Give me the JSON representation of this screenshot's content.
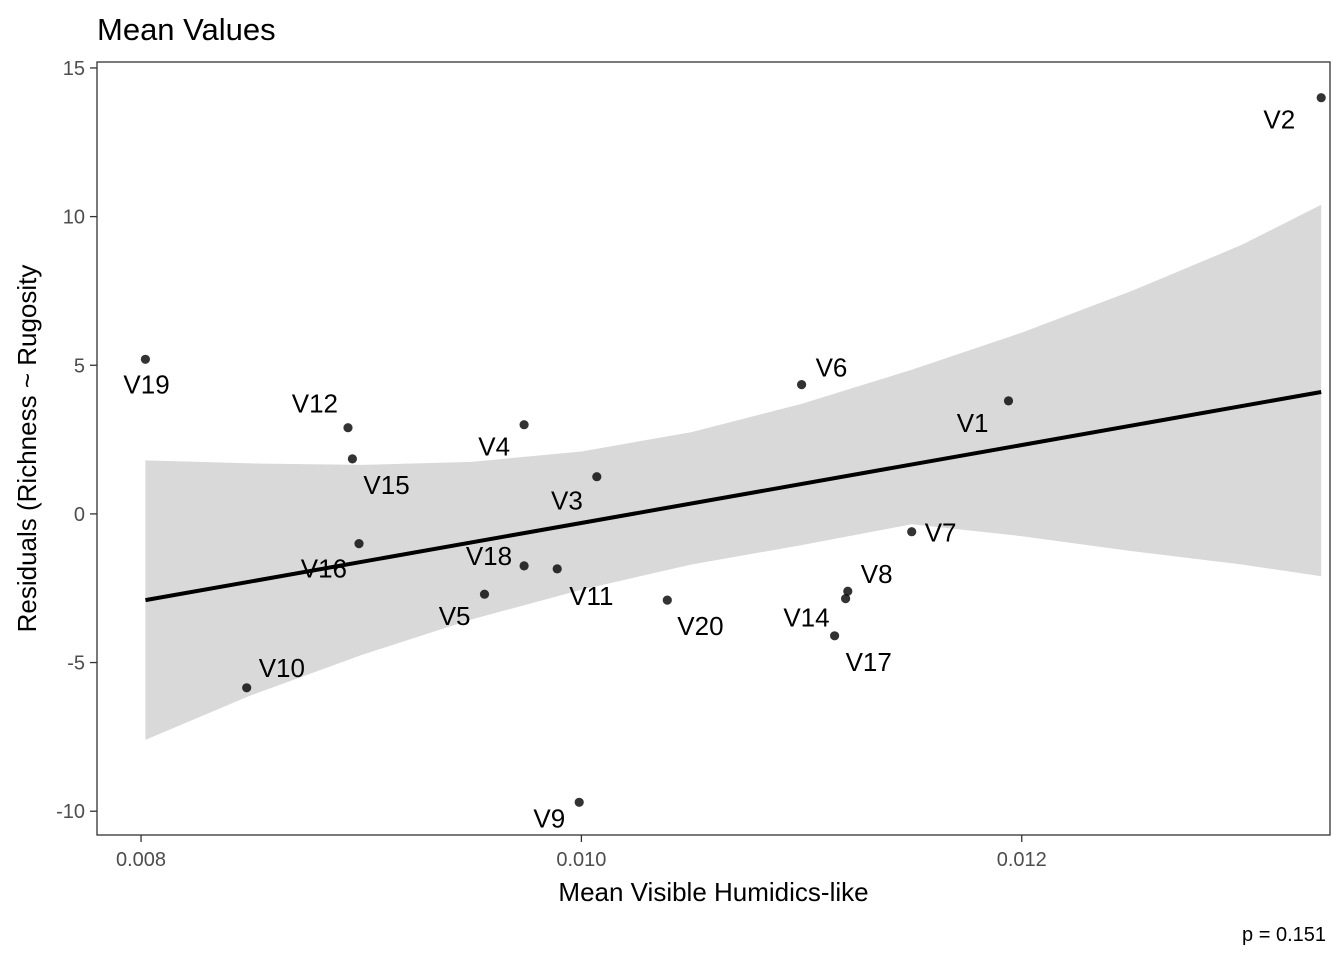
{
  "chart_data": {
    "type": "scatter",
    "title": "Mean Values",
    "xlabel": "Mean Visible Humidics-like",
    "ylabel": "Residuals (Richness ~ Rugosity",
    "caption": "p = 0.151",
    "xlim": [
      0.0078,
      0.0134
    ],
    "ylim": [
      -10.8,
      15.2
    ],
    "x_ticks": [
      {
        "value": 0.008,
        "label": "0.008"
      },
      {
        "value": 0.01,
        "label": "0.010"
      },
      {
        "value": 0.012,
        "label": "0.012"
      }
    ],
    "y_ticks": [
      {
        "value": 15,
        "label": "15"
      },
      {
        "value": 10,
        "label": "10"
      },
      {
        "value": 5,
        "label": "5"
      },
      {
        "value": 0,
        "label": "0"
      },
      {
        "value": -5,
        "label": "-5"
      },
      {
        "value": -10,
        "label": "-10"
      }
    ],
    "grid": false,
    "points": [
      {
        "label": "V1",
        "x": 0.01194,
        "y": 3.8
      },
      {
        "label": "V2",
        "x": 0.01336,
        "y": 14.0
      },
      {
        "label": "V3",
        "x": 0.01007,
        "y": 1.25
      },
      {
        "label": "V4",
        "x": 0.00974,
        "y": 3.0
      },
      {
        "label": "V5",
        "x": 0.00956,
        "y": -2.7
      },
      {
        "label": "V6",
        "x": 0.011,
        "y": 4.35
      },
      {
        "label": "V7",
        "x": 0.0115,
        "y": -0.6
      },
      {
        "label": "V8",
        "x": 0.01121,
        "y": -2.6
      },
      {
        "label": "V9",
        "x": 0.00999,
        "y": -9.7
      },
      {
        "label": "V10",
        "x": 0.00848,
        "y": -5.85
      },
      {
        "label": "V11",
        "x": 0.00989,
        "y": -1.85
      },
      {
        "label": "V12",
        "x": 0.00894,
        "y": 2.9
      },
      {
        "label": "V14",
        "x": 0.0112,
        "y": -2.85
      },
      {
        "label": "V15",
        "x": 0.00896,
        "y": 1.85
      },
      {
        "label": "V16",
        "x": 0.00899,
        "y": -1.0
      },
      {
        "label": "V17",
        "x": 0.01115,
        "y": -4.1
      },
      {
        "label": "V18",
        "x": 0.00974,
        "y": -1.75
      },
      {
        "label": "V19",
        "x": 0.00802,
        "y": 5.2
      },
      {
        "label": "V20",
        "x": 0.01039,
        "y": -2.9
      }
    ],
    "fit_line": {
      "x": [
        0.00802,
        0.01336
      ],
      "y": [
        -2.9,
        4.1
      ]
    },
    "confidence_band": {
      "x": [
        0.00802,
        0.0085,
        0.009,
        0.0095,
        0.01,
        0.0105,
        0.011,
        0.0115,
        0.012,
        0.0125,
        0.013,
        0.01336
      ],
      "upper": [
        1.8,
        1.7,
        1.65,
        1.75,
        2.1,
        2.75,
        3.7,
        4.85,
        6.1,
        7.5,
        9.05,
        10.4
      ],
      "lower": [
        -7.6,
        -6.1,
        -4.75,
        -3.55,
        -2.55,
        -1.7,
        -1.05,
        -0.35,
        -0.75,
        -1.25,
        -1.7,
        -2.1
      ]
    },
    "colors": {
      "band": "#d9d9d9",
      "line": "#000000",
      "point": "#000000",
      "panel_border": "#333333"
    }
  }
}
